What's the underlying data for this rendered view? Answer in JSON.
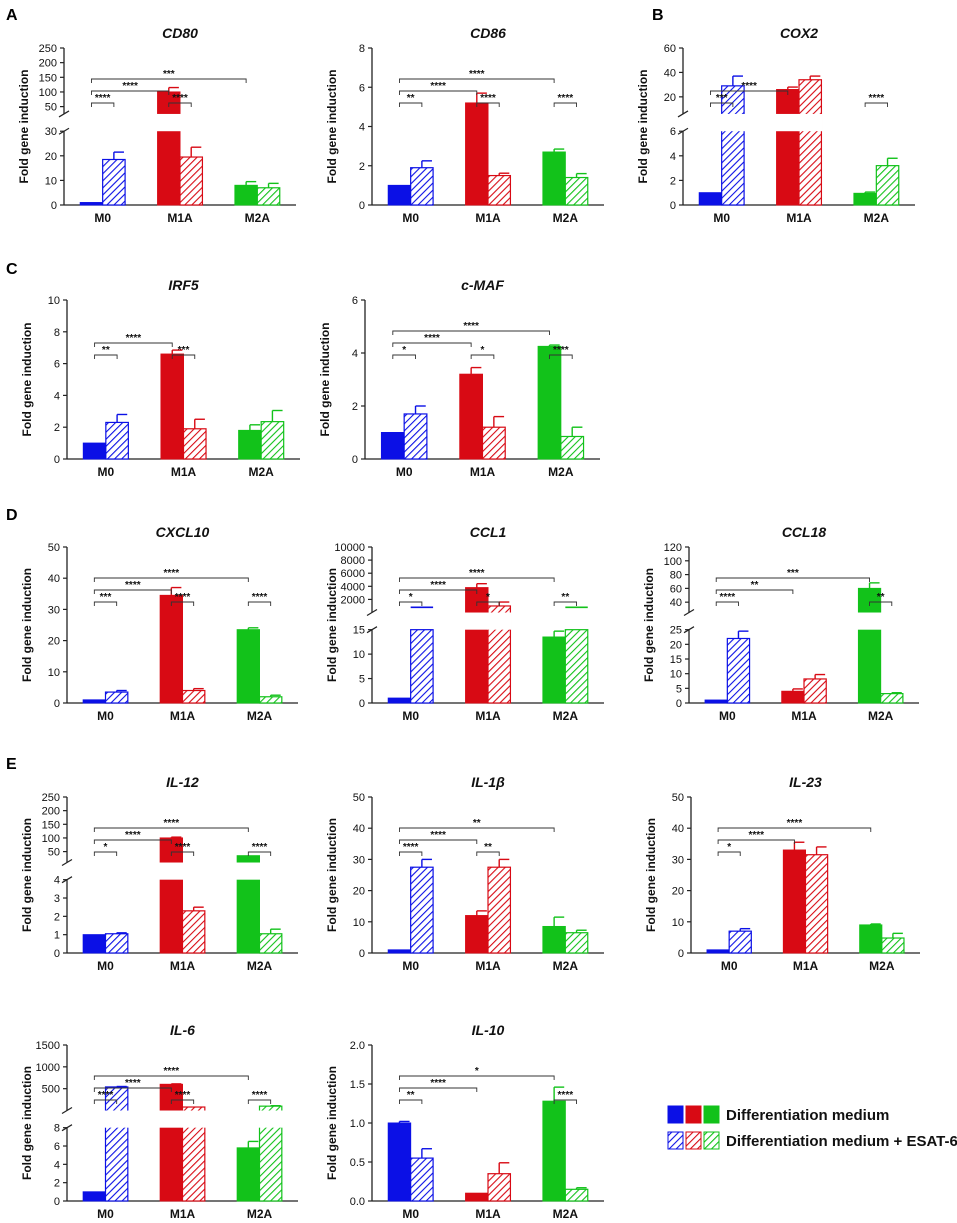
{
  "figure": {
    "ylabel": "Fold gene induction",
    "categories": [
      "M0",
      "M1A",
      "M2A"
    ],
    "colors": {
      "M0": "#0b10e6",
      "M1A": "#d80a14",
      "M2A": "#12c21a"
    },
    "legend": {
      "solid_label": "Differentiation medium",
      "hatched_label": "Differentiation medium + ESAT-6"
    }
  },
  "panels": [
    {
      "letter": "A"
    },
    {
      "letter": "B"
    },
    {
      "letter": "C"
    },
    {
      "letter": "D"
    },
    {
      "letter": "E"
    }
  ],
  "chart_data": [
    {
      "type": "bar",
      "panel": "A",
      "title": "CD80",
      "categories": [
        "M0",
        "M1A",
        "M2A"
      ],
      "series": [
        {
          "name": "Differentiation medium",
          "values": [
            1,
            100,
            8
          ],
          "errors": [
            0,
            15,
            1.5
          ]
        },
        {
          "name": "Differentiation medium + ESAT-6",
          "values": [
            18.5,
            19.5,
            7
          ],
          "errors": [
            3,
            4,
            1.8
          ]
        }
      ],
      "broken_axis": true,
      "lower_range": [
        0,
        30
      ],
      "upper_range": [
        25,
        250
      ],
      "lower_ticks": [
        0,
        10,
        20,
        30
      ],
      "upper_ticks": [
        50,
        100,
        150,
        200,
        250
      ],
      "tick_labels": {
        "250": "250",
        "200": "200",
        "150": "150",
        "100": "100",
        "50": "50",
        "30": "30",
        "20": "20",
        "10": "10",
        "0": "0"
      },
      "brackets": [
        {
          "from": 0,
          "to": 1,
          "label": "****"
        },
        {
          "from": 0,
          "to": 2,
          "label": "****"
        },
        {
          "from": 0,
          "to": 4,
          "label": "***"
        },
        {
          "from": 2,
          "to": 3,
          "label": "****"
        }
      ]
    },
    {
      "type": "bar",
      "panel": "A",
      "title": "CD86",
      "categories": [
        "M0",
        "M1A",
        "M2A"
      ],
      "series": [
        {
          "name": "Differentiation medium",
          "values": [
            1,
            5.2,
            2.7
          ],
          "errors": [
            0,
            0.5,
            0.15
          ]
        },
        {
          "name": "Differentiation medium + ESAT-6",
          "values": [
            1.9,
            1.5,
            1.4
          ],
          "errors": [
            0.35,
            0.12,
            0.2
          ]
        }
      ],
      "ylim": [
        0,
        8
      ],
      "yticks": [
        0,
        2,
        4,
        6,
        8
      ],
      "brackets": [
        {
          "from": 0,
          "to": 1,
          "label": "**"
        },
        {
          "from": 0,
          "to": 2,
          "label": "****"
        },
        {
          "from": 0,
          "to": 4,
          "label": "****"
        },
        {
          "from": 2,
          "to": 3,
          "label": "****"
        },
        {
          "from": 4,
          "to": 5,
          "label": "****"
        }
      ]
    },
    {
      "type": "bar",
      "panel": "B",
      "title": "COX2",
      "categories": [
        "M0",
        "M1A",
        "M2A"
      ],
      "series": [
        {
          "name": "Differentiation medium",
          "values": [
            1,
            26,
            0.95
          ],
          "errors": [
            0,
            2,
            0.1
          ]
        },
        {
          "name": "Differentiation medium + ESAT-6",
          "values": [
            29,
            34,
            3.2
          ],
          "errors": [
            8,
            3,
            0.6
          ]
        }
      ],
      "broken_axis": true,
      "lower_range": [
        0,
        6
      ],
      "upper_range": [
        6,
        60
      ],
      "lower_ticks": [
        0,
        2,
        4,
        6
      ],
      "upper_ticks": [
        20,
        40,
        60
      ],
      "tick_labels": {
        "60": "60",
        "40": "40",
        "20": "20",
        "6": "6",
        "4": "4",
        "2": "2",
        "0": "0"
      },
      "brackets": [
        {
          "from": 0,
          "to": 1,
          "label": "***"
        },
        {
          "from": 0,
          "to": 2,
          "label": "****"
        },
        {
          "from": 4,
          "to": 5,
          "label": "****"
        }
      ]
    },
    {
      "type": "bar",
      "panel": "C",
      "title": "IRF5",
      "categories": [
        "M0",
        "M1A",
        "M2A"
      ],
      "series": [
        {
          "name": "Differentiation medium",
          "values": [
            1,
            6.6,
            1.8
          ],
          "errors": [
            0,
            0.25,
            0.35
          ]
        },
        {
          "name": "Differentiation medium + ESAT-6",
          "values": [
            2.3,
            1.9,
            2.35
          ],
          "errors": [
            0.5,
            0.6,
            0.7
          ]
        }
      ],
      "ylim": [
        0,
        10
      ],
      "yticks": [
        0,
        2,
        4,
        6,
        8,
        10
      ],
      "brackets": [
        {
          "from": 0,
          "to": 1,
          "label": "**"
        },
        {
          "from": 0,
          "to": 2,
          "label": "****"
        },
        {
          "from": 2,
          "to": 3,
          "label": "***"
        }
      ]
    },
    {
      "type": "bar",
      "panel": "C",
      "title": "c-MAF",
      "categories": [
        "M0",
        "M1A",
        "M2A"
      ],
      "series": [
        {
          "name": "Differentiation medium",
          "values": [
            1,
            3.2,
            4.25
          ],
          "errors": [
            0,
            0.25,
            0.05
          ]
        },
        {
          "name": "Differentiation medium + ESAT-6",
          "values": [
            1.7,
            1.2,
            0.85
          ],
          "errors": [
            0.3,
            0.4,
            0.35
          ]
        }
      ],
      "ylim": [
        0,
        6
      ],
      "yticks": [
        0,
        2,
        4,
        6
      ],
      "brackets": [
        {
          "from": 0,
          "to": 1,
          "label": "*"
        },
        {
          "from": 0,
          "to": 2,
          "label": "****"
        },
        {
          "from": 0,
          "to": 4,
          "label": "****"
        },
        {
          "from": 2,
          "to": 3,
          "label": "*"
        },
        {
          "from": 4,
          "to": 5,
          "label": "****"
        }
      ]
    },
    {
      "type": "bar",
      "panel": "D",
      "title": "CXCL10",
      "categories": [
        "M0",
        "M1A",
        "M2A"
      ],
      "series": [
        {
          "name": "Differentiation medium",
          "values": [
            1,
            34.5,
            23.5
          ],
          "errors": [
            0,
            2.5,
            0.6
          ]
        },
        {
          "name": "Differentiation medium + ESAT-6",
          "values": [
            3.5,
            4,
            2
          ],
          "errors": [
            0.5,
            0.6,
            0.5
          ]
        }
      ],
      "ylim": [
        0,
        50
      ],
      "yticks": [
        0,
        10,
        20,
        30,
        40,
        50
      ],
      "brackets": [
        {
          "from": 0,
          "to": 1,
          "label": "***"
        },
        {
          "from": 0,
          "to": 2,
          "label": "****"
        },
        {
          "from": 0,
          "to": 4,
          "label": "****"
        },
        {
          "from": 2,
          "to": 3,
          "label": "****"
        },
        {
          "from": 4,
          "to": 5,
          "label": "****"
        }
      ]
    },
    {
      "type": "bar",
      "panel": "D",
      "title": "CCL1",
      "categories": [
        "M0",
        "M1A",
        "M2A"
      ],
      "series": [
        {
          "name": "Differentiation medium",
          "values": [
            1,
            3800,
            13.5
          ],
          "errors": [
            0,
            600,
            1.2
          ]
        },
        {
          "name": "Differentiation medium + ESAT-6",
          "values": [
            15,
            1000,
            15
          ],
          "errors": [
            0,
            600,
            0
          ]
        }
      ],
      "broken_axis": true,
      "lower_range": [
        0,
        15
      ],
      "upper_range": [
        0,
        10000
      ],
      "lower_ticks": [
        0,
        5,
        10,
        15
      ],
      "upper_ticks": [
        2000,
        4000,
        6000,
        8000,
        10000
      ],
      "tick_labels": {
        "10000": "10000",
        "8000": "8000",
        "6000": "6000",
        "4000": "4000",
        "2000": "2000",
        "15": "15",
        "10": "10",
        "5": "5",
        "0": "0"
      },
      "capped_markers": [
        {
          "bar": 1,
          "upper_value": 800
        },
        {
          "bar": 5,
          "upper_value": 800
        }
      ],
      "brackets": [
        {
          "from": 0,
          "to": 1,
          "label": "*"
        },
        {
          "from": 0,
          "to": 2,
          "label": "****"
        },
        {
          "from": 0,
          "to": 4,
          "label": "****"
        },
        {
          "from": 2,
          "to": 3,
          "label": "*"
        },
        {
          "from": 4,
          "to": 5,
          "label": "**"
        }
      ]
    },
    {
      "type": "bar",
      "panel": "D",
      "title": "CCL18",
      "categories": [
        "M0",
        "M1A",
        "M2A"
      ],
      "series": [
        {
          "name": "Differentiation medium",
          "values": [
            1,
            4,
            60
          ],
          "errors": [
            0,
            0.8,
            8
          ]
        },
        {
          "name": "Differentiation medium + ESAT-6",
          "values": [
            22,
            8.2,
            3.2
          ],
          "errors": [
            2.5,
            1.5,
            0.3
          ]
        }
      ],
      "broken_axis": true,
      "lower_range": [
        0,
        25
      ],
      "upper_range": [
        25,
        120
      ],
      "lower_ticks": [
        0,
        5,
        10,
        15,
        20,
        25
      ],
      "upper_ticks": [
        40,
        60,
        80,
        100,
        120
      ],
      "tick_labels": {
        "120": "120",
        "100": "100",
        "80": "80",
        "60": "60",
        "40": "40",
        "25": "25",
        "20": "20",
        "15": "15",
        "10": "10",
        "5": "5",
        "0": "0"
      },
      "brackets": [
        {
          "from": 0,
          "to": 1,
          "label": "****"
        },
        {
          "from": 0,
          "to": 2,
          "label": "**"
        },
        {
          "from": 0,
          "to": 4,
          "label": "***"
        },
        {
          "from": 4,
          "to": 5,
          "label": "**"
        }
      ]
    },
    {
      "type": "bar",
      "panel": "E",
      "title": "IL-12",
      "categories": [
        "M0",
        "M1A",
        "M2A"
      ],
      "series": [
        {
          "name": "Differentiation medium",
          "values": [
            1,
            100,
            35
          ],
          "errors": [
            0,
            3,
            0
          ]
        },
        {
          "name": "Differentiation medium + ESAT-6",
          "values": [
            1.05,
            2.3,
            1.05
          ],
          "errors": [
            0.05,
            0.2,
            0.25
          ]
        }
      ],
      "broken_axis": true,
      "lower_range": [
        0,
        4
      ],
      "upper_range": [
        10,
        250
      ],
      "lower_ticks": [
        0,
        1,
        2,
        3,
        4
      ],
      "upper_ticks": [
        50,
        100,
        150,
        200,
        250
      ],
      "tick_labels": {
        "250": "250",
        "200": "200",
        "150": "150",
        "100": "100",
        "50": "50",
        "4": "4",
        "3": "3",
        "2": "2",
        "1": "1",
        "0": "0"
      },
      "brackets": [
        {
          "from": 0,
          "to": 1,
          "label": "*"
        },
        {
          "from": 0,
          "to": 2,
          "label": "****"
        },
        {
          "from": 0,
          "to": 4,
          "label": "****"
        },
        {
          "from": 2,
          "to": 3,
          "label": "****"
        },
        {
          "from": 4,
          "to": 5,
          "label": "****"
        }
      ]
    },
    {
      "type": "bar",
      "panel": "E",
      "title": "IL-1β",
      "categories": [
        "M0",
        "M1A",
        "M2A"
      ],
      "series": [
        {
          "name": "Differentiation medium",
          "values": [
            1,
            12,
            8.5
          ],
          "errors": [
            0,
            1.5,
            3
          ]
        },
        {
          "name": "Differentiation medium + ESAT-6",
          "values": [
            27.5,
            27.5,
            6.5
          ],
          "errors": [
            2.5,
            2.5,
            0.8
          ]
        }
      ],
      "ylim": [
        0,
        50
      ],
      "yticks": [
        0,
        10,
        20,
        30,
        40,
        50
      ],
      "brackets": [
        {
          "from": 0,
          "to": 1,
          "label": "****"
        },
        {
          "from": 0,
          "to": 2,
          "label": "****"
        },
        {
          "from": 0,
          "to": 4,
          "label": "**"
        },
        {
          "from": 2,
          "to": 3,
          "label": "**"
        }
      ]
    },
    {
      "type": "bar",
      "panel": "E",
      "title": "IL-23",
      "categories": [
        "M0",
        "M1A",
        "M2A"
      ],
      "series": [
        {
          "name": "Differentiation medium",
          "values": [
            1,
            33,
            9
          ],
          "errors": [
            0,
            2.5,
            0.3
          ]
        },
        {
          "name": "Differentiation medium + ESAT-6",
          "values": [
            7,
            31.5,
            4.8
          ],
          "errors": [
            0.8,
            2.5,
            1.5
          ]
        }
      ],
      "ylim": [
        0,
        50
      ],
      "yticks": [
        0,
        10,
        20,
        30,
        40,
        50
      ],
      "brackets": [
        {
          "from": 0,
          "to": 1,
          "label": "*"
        },
        {
          "from": 0,
          "to": 2,
          "label": "****"
        },
        {
          "from": 0,
          "to": 4,
          "label": "****"
        }
      ]
    },
    {
      "type": "bar",
      "panel": "E",
      "title": "IL-6",
      "categories": [
        "M0",
        "M1A",
        "M2A"
      ],
      "series": [
        {
          "name": "Differentiation medium",
          "values": [
            1,
            600,
            5.8
          ],
          "errors": [
            0,
            10,
            0.7
          ]
        },
        {
          "name": "Differentiation medium + ESAT-6",
          "values": [
            540,
            80,
            100
          ],
          "errors": [
            10,
            0,
            10
          ]
        }
      ],
      "broken_axis": true,
      "lower_range": [
        0,
        8
      ],
      "upper_range": [
        0,
        1500
      ],
      "lower_ticks": [
        0,
        2,
        4,
        6,
        8
      ],
      "upper_ticks": [
        500,
        1000,
        1500
      ],
      "tick_labels": {
        "1500": "1500",
        "1000": "1000",
        "500": "500",
        "8": "8",
        "6": "6",
        "4": "4",
        "2": "2",
        "0": "0"
      },
      "brackets": [
        {
          "from": 0,
          "to": 1,
          "label": "****"
        },
        {
          "from": 0,
          "to": 2,
          "label": "****"
        },
        {
          "from": 0,
          "to": 4,
          "label": "****"
        },
        {
          "from": 2,
          "to": 3,
          "label": "****"
        },
        {
          "from": 4,
          "to": 5,
          "label": "****"
        }
      ]
    },
    {
      "type": "bar",
      "panel": "E",
      "title": "IL-10",
      "categories": [
        "M0",
        "M1A",
        "M2A"
      ],
      "series": [
        {
          "name": "Differentiation medium",
          "values": [
            1.0,
            0.1,
            1.28
          ],
          "errors": [
            0.02,
            0.0,
            0.18
          ]
        },
        {
          "name": "Differentiation medium + ESAT-6",
          "values": [
            0.55,
            0.35,
            0.15
          ],
          "errors": [
            0.12,
            0.14,
            0.02
          ]
        }
      ],
      "ylim": [
        0,
        2.0
      ],
      "yticks": [
        0,
        0.5,
        1.0,
        1.5,
        2.0
      ],
      "tick_labels": {
        "0": "0.0",
        "0.5": "0.5",
        "1": "1.0",
        "1.5": "1.5",
        "2": "2.0"
      },
      "brackets": [
        {
          "from": 0,
          "to": 1,
          "label": "**"
        },
        {
          "from": 0,
          "to": 2,
          "label": "****"
        },
        {
          "from": 0,
          "to": 4,
          "label": "*"
        },
        {
          "from": 4,
          "to": 5,
          "label": "****"
        }
      ]
    }
  ]
}
